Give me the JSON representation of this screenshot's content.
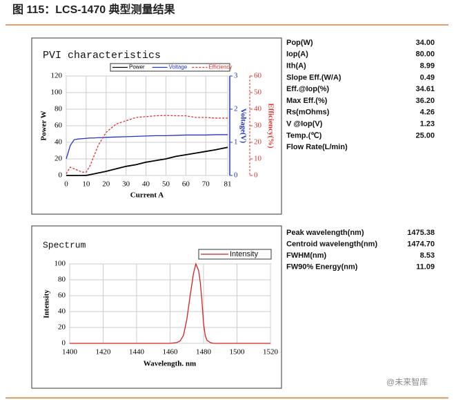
{
  "header": {
    "title": "图 115：LCS-1470 典型测量结果"
  },
  "chart_data": [
    {
      "type": "line",
      "title": "PVI characteristics",
      "x_label": "Current A",
      "y_label": "Power W",
      "y2_label": "Voltage(V)",
      "y3_label": "Efficiency(%)",
      "x": [
        0,
        2,
        4,
        6,
        8,
        10,
        12,
        14,
        16,
        18,
        20,
        25,
        30,
        35,
        40,
        45,
        50,
        55,
        60,
        65,
        70,
        75,
        81
      ],
      "xlim": [
        0,
        81
      ],
      "xticks": [
        0,
        10,
        20,
        30,
        40,
        50,
        60,
        70,
        81
      ],
      "ylim": [
        0,
        120
      ],
      "yticks": [
        0,
        20,
        40,
        60,
        80,
        100,
        120
      ],
      "y2lim": [
        0,
        3
      ],
      "y2ticks": [
        0,
        1,
        2,
        3
      ],
      "y3lim": [
        0,
        60
      ],
      "y3ticks": [
        0,
        10,
        20,
        30,
        40,
        50,
        60
      ],
      "grid": true,
      "series": [
        {
          "name": "Power",
          "color": "#000000",
          "line_style": "solid",
          "values": [
            0,
            0,
            0,
            0,
            0,
            0,
            1,
            2,
            3,
            4,
            5,
            8,
            11,
            13,
            16,
            18,
            20,
            23,
            25,
            27,
            29,
            31,
            34
          ]
        },
        {
          "name": "Voltage",
          "color": "#2233cc",
          "line_style": "solid",
          "axis": "y2",
          "values": [
            0.5,
            0.9,
            1.08,
            1.1,
            1.11,
            1.12,
            1.13,
            1.13,
            1.14,
            1.14,
            1.15,
            1.16,
            1.17,
            1.18,
            1.19,
            1.2,
            1.2,
            1.21,
            1.22,
            1.22,
            1.22,
            1.23,
            1.23
          ]
        },
        {
          "name": "Efficiency",
          "color": "#e03030",
          "line_style": "dashed",
          "axis": "y3",
          "values": [
            1,
            5,
            4,
            3,
            2,
            2,
            6,
            12,
            18,
            22,
            26,
            31,
            33,
            35,
            35.5,
            36,
            36.2,
            36,
            36,
            35,
            35,
            34.6,
            34.6
          ]
        }
      ]
    },
    {
      "type": "line",
      "title": "Spectrum",
      "x_label": "Wavelength. nm",
      "y_label": "Intensity",
      "x": [
        1400,
        1460,
        1464,
        1466,
        1468,
        1470,
        1472,
        1474,
        1475.4,
        1477,
        1478,
        1479,
        1480,
        1481,
        1482,
        1484,
        1486,
        1520
      ],
      "xlim": [
        1400,
        1520
      ],
      "xticks": [
        1400,
        1420,
        1440,
        1460,
        1480,
        1500,
        1520
      ],
      "ylim": [
        0,
        100
      ],
      "yticks": [
        0,
        20,
        40,
        60,
        80,
        100
      ],
      "grid": true,
      "series": [
        {
          "name": "Intensity",
          "color": "#d42020",
          "line_style": "solid",
          "values": [
            0,
            0,
            1,
            3,
            10,
            30,
            60,
            88,
            100,
            92,
            78,
            55,
            25,
            10,
            4,
            1,
            0,
            0
          ]
        }
      ]
    }
  ],
  "tables": [
    {
      "rows": [
        [
          "Pop(W)",
          "34.00"
        ],
        [
          "Iop(A)",
          "80.00"
        ],
        [
          "Ith(A)",
          "8.99"
        ],
        [
          "Slope Eff.(W/A)",
          "0.49"
        ],
        [
          "Eff.@Iop(%)",
          "34.61"
        ],
        [
          "Max Eff.(%)",
          "36.20"
        ],
        [
          "Rs(mOhms)",
          "4.26"
        ],
        [
          "V @Iop(V)",
          "1.23"
        ],
        [
          "Temp.(℃)",
          "25.00"
        ],
        [
          "Flow Rate(L/min)"
        ]
      ]
    },
    {
      "rows": [
        [
          "Peak wavelength(nm)",
          "1475.38"
        ],
        [
          "Centroid wavelength(nm)",
          "1474.70"
        ],
        [
          "FWHM(nm)",
          "8.53"
        ],
        [
          "FW90% Energy(nm)",
          "11.09"
        ]
      ]
    }
  ],
  "watermark": "@未来智库"
}
